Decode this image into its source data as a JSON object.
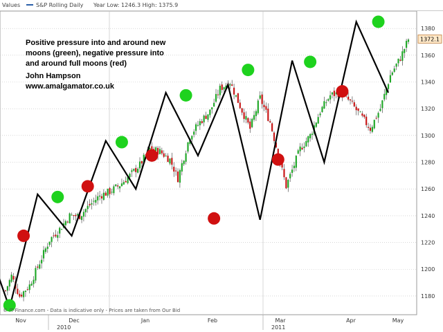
{
  "topbar": {
    "values_label": "Values",
    "series_label": "S&P Rolling Daily",
    "stats_label": "Year Low: 1246.3 High: 1375.9"
  },
  "annotation": {
    "line1": "Positive pressure into and around new",
    "line2": "moons (green), negative pressure into",
    "line3": "and around full moons (red)",
    "author": "John Hampson",
    "website": "www.amalgamator.co.uk"
  },
  "footer": "© IT-Finance.com - Data is indicative only - Prices are taken from Our Bid",
  "colors": {
    "up": "#22a82a",
    "down": "#c81818",
    "new_moon": "#1ed21e",
    "full_moon": "#d01010",
    "cycle": "#000000",
    "grid": "#bdbdbd"
  },
  "chart_data": {
    "type": "candlestick",
    "y_ticks": [
      1180,
      1200,
      1220,
      1240,
      1260,
      1280,
      1300,
      1320,
      1340,
      1360,
      1380
    ],
    "ylim": [
      1166,
      1393
    ],
    "x_months": [
      "Nov",
      "Dec",
      "Jan",
      "Feb",
      "Mar",
      "Apr",
      "May"
    ],
    "x_years": [
      "2010",
      "2011"
    ],
    "last_price": "1372.1",
    "price_path": [
      [
        0,
        1184
      ],
      [
        3,
        1195
      ],
      [
        7,
        1180
      ],
      [
        12,
        1188
      ],
      [
        17,
        1205
      ],
      [
        22,
        1222
      ],
      [
        27,
        1230
      ],
      [
        32,
        1240
      ],
      [
        37,
        1240
      ],
      [
        42,
        1248
      ],
      [
        47,
        1255
      ],
      [
        52,
        1258
      ],
      [
        57,
        1263
      ],
      [
        62,
        1270
      ],
      [
        67,
        1278
      ],
      [
        72,
        1290
      ],
      [
        77,
        1288
      ],
      [
        82,
        1282
      ],
      [
        86,
        1268
      ],
      [
        92,
        1300
      ],
      [
        97,
        1310
      ],
      [
        102,
        1318
      ],
      [
        107,
        1335
      ],
      [
        112,
        1340
      ],
      [
        117,
        1322
      ],
      [
        122,
        1305
      ],
      [
        127,
        1328
      ],
      [
        132,
        1310
      ],
      [
        137,
        1280
      ],
      [
        140,
        1262
      ],
      [
        142,
        1270
      ],
      [
        147,
        1290
      ],
      [
        152,
        1300
      ],
      [
        157,
        1318
      ],
      [
        162,
        1330
      ],
      [
        167,
        1332
      ],
      [
        172,
        1325
      ],
      [
        177,
        1315
      ],
      [
        182,
        1305
      ],
      [
        187,
        1320
      ],
      [
        192,
        1345
      ],
      [
        197,
        1358
      ],
      [
        201,
        1372
      ]
    ],
    "new_moons": [
      [
        2,
        1173
      ],
      [
        26,
        1254
      ],
      [
        58,
        1295
      ],
      [
        90,
        1330
      ],
      [
        121,
        1349
      ],
      [
        152,
        1355
      ],
      [
        186,
        1385
      ]
    ],
    "full_moons": [
      [
        9,
        1225
      ],
      [
        41,
        1262
      ],
      [
        73,
        1285
      ],
      [
        104,
        1238
      ],
      [
        136,
        1282
      ],
      [
        168,
        1333
      ]
    ],
    "cycle_line": [
      [
        -8,
        1214
      ],
      [
        2,
        1171
      ],
      [
        16,
        1256
      ],
      [
        33,
        1225
      ],
      [
        50,
        1296
      ],
      [
        65,
        1260
      ],
      [
        80,
        1332
      ],
      [
        96,
        1285
      ],
      [
        111,
        1338
      ],
      [
        127,
        1237
      ],
      [
        143,
        1356
      ],
      [
        159,
        1280
      ],
      [
        175,
        1385
      ],
      [
        191,
        1332
      ]
    ]
  }
}
